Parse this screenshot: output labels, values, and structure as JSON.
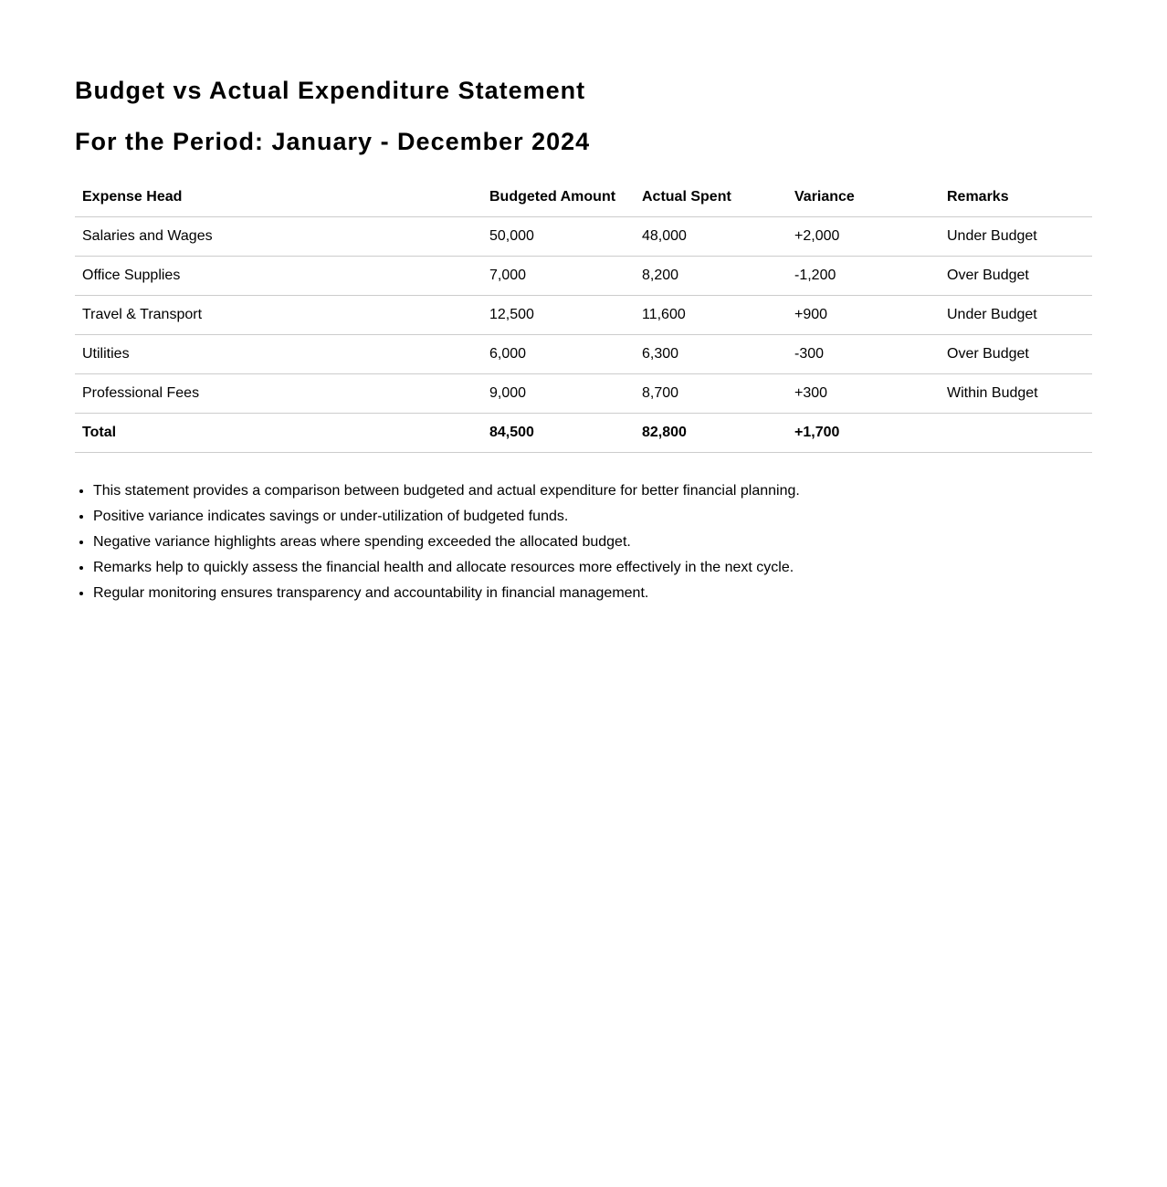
{
  "title": "Budget vs Actual Expenditure Statement",
  "subtitle": "For the Period: January - December 2024",
  "table": {
    "headers": [
      "Expense Head",
      "Budgeted Amount",
      "Actual Spent",
      "Variance",
      "Remarks"
    ],
    "rows": [
      [
        "Salaries and Wages",
        "50,000",
        "48,000",
        "+2,000",
        "Under Budget"
      ],
      [
        "Office Supplies",
        "7,000",
        "8,200",
        "-1,200",
        "Over Budget"
      ],
      [
        "Travel & Transport",
        "12,500",
        "11,600",
        "+900",
        "Under Budget"
      ],
      [
        "Utilities",
        "6,000",
        "6,300",
        "-300",
        "Over Budget"
      ],
      [
        "Professional Fees",
        "9,000",
        "8,700",
        "+300",
        "Within Budget"
      ]
    ],
    "total": [
      "Total",
      "84,500",
      "82,800",
      "+1,700",
      ""
    ]
  },
  "notes": [
    "This statement provides a comparison between budgeted and actual expenditure for better financial planning.",
    "Positive variance indicates savings or under-utilization of budgeted funds.",
    "Negative variance highlights areas where spending exceeded the allocated budget.",
    "Remarks help to quickly assess the financial health and allocate resources more effectively in the next cycle.",
    "Regular monitoring ensures transparency and accountability in financial management."
  ]
}
